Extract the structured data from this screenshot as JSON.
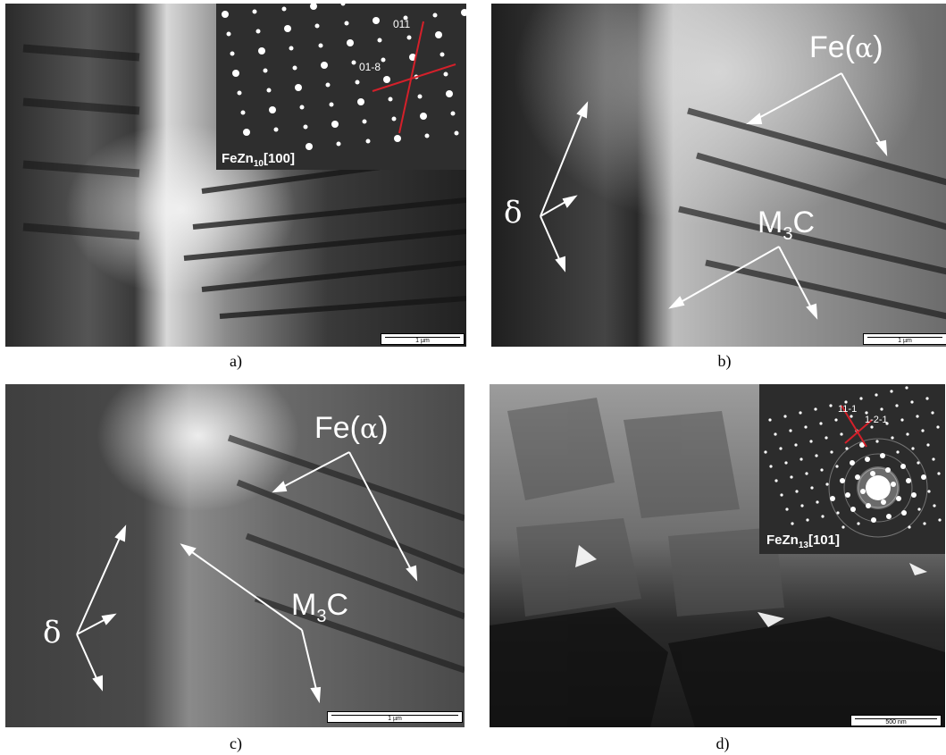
{
  "panels": {
    "a": {
      "caption": "a)",
      "scale": "1 µm",
      "inset": {
        "title_main": "FeZn",
        "title_sub": "10",
        "title_zone": "[100]",
        "idx1": "011",
        "idx2": "01-8"
      }
    },
    "b": {
      "caption": "b)",
      "scale": "1 µm",
      "labels": {
        "fe_a": "Fe(",
        "alpha": "α",
        "fe_close": ")",
        "m3c_m": "M",
        "m3c_sub": "3",
        "m3c_c": "C",
        "delta": "δ"
      }
    },
    "c": {
      "caption": "c)",
      "scale": "1 µm",
      "labels": {
        "fe_a": "Fe(",
        "alpha": "α",
        "fe_close": ")",
        "m3c_m": "M",
        "m3c_sub": "3",
        "m3c_c": "C",
        "delta": "δ"
      }
    },
    "d": {
      "caption": "d)",
      "scale": "500 nm",
      "inset": {
        "title_main": "FeZn",
        "title_sub": "13",
        "title_zone": "[101]",
        "idx1": "11-1",
        "idx2": "1-2-1"
      }
    }
  },
  "colors": {
    "index_line": "#d4202a",
    "arrow": "#ffffff"
  }
}
